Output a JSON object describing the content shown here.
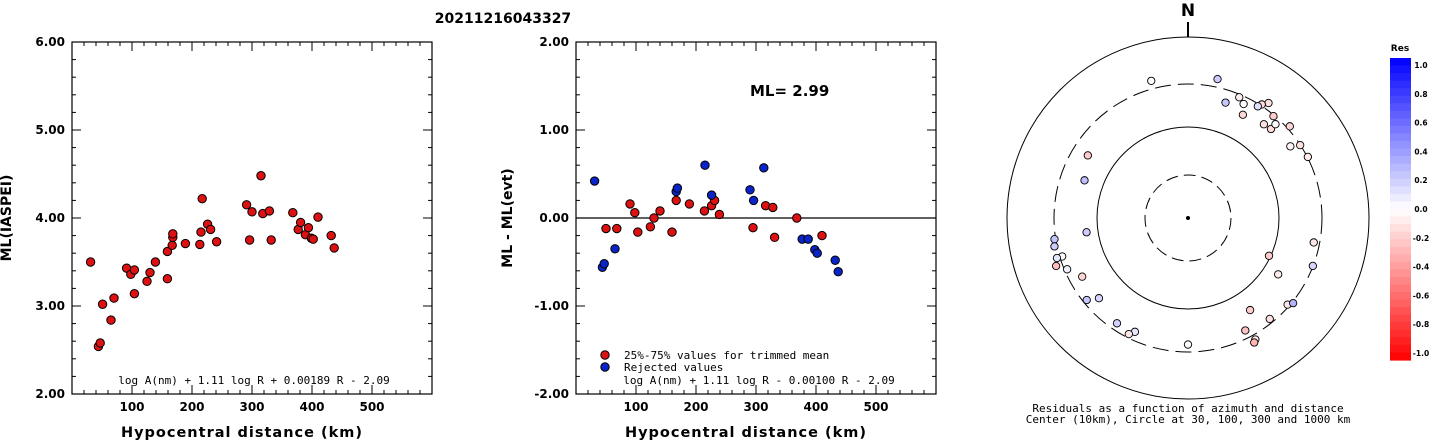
{
  "page_title": "20211216043327",
  "chart_data": [
    {
      "type": "scatter",
      "ylabel": "ML(IASPEI)",
      "xlabel": "Hypocentral distance (km)",
      "xlim": [
        0,
        600
      ],
      "ylim": [
        2.0,
        6.0
      ],
      "x_ticks": [
        "100",
        "200",
        "300",
        "400",
        "500"
      ],
      "y_ticks": [
        "2.00",
        "3.00",
        "4.00",
        "5.00",
        "6.00"
      ],
      "formula": "log A(nm) + 1.11 log R + 0.00189 R - 2.09",
      "point_color": "#dd1111",
      "points": [
        [
          31,
          3.5
        ],
        [
          44,
          2.54
        ],
        [
          47,
          2.58
        ],
        [
          51,
          3.02
        ],
        [
          65,
          2.84
        ],
        [
          70,
          3.09
        ],
        [
          91,
          3.43
        ],
        [
          98,
          3.36
        ],
        [
          104,
          3.14
        ],
        [
          104,
          3.41
        ],
        [
          125,
          3.28
        ],
        [
          130,
          3.38
        ],
        [
          139,
          3.5
        ],
        [
          159,
          3.31
        ],
        [
          159,
          3.62
        ],
        [
          167,
          3.69
        ],
        [
          168,
          3.78
        ],
        [
          168,
          3.82
        ],
        [
          189,
          3.71
        ],
        [
          213,
          3.7
        ],
        [
          215,
          3.84
        ],
        [
          217,
          4.22
        ],
        [
          226,
          3.93
        ],
        [
          231,
          3.87
        ],
        [
          241,
          3.73
        ],
        [
          291,
          4.15
        ],
        [
          296,
          3.75
        ],
        [
          300,
          4.07
        ],
        [
          315,
          4.48
        ],
        [
          318,
          4.05
        ],
        [
          329,
          4.08
        ],
        [
          332,
          3.75
        ],
        [
          368,
          4.06
        ],
        [
          377,
          3.87
        ],
        [
          381,
          3.95
        ],
        [
          389,
          3.81
        ],
        [
          394,
          3.89
        ],
        [
          399,
          3.77
        ],
        [
          402,
          3.76
        ],
        [
          410,
          4.01
        ],
        [
          432,
          3.8
        ],
        [
          437,
          3.66
        ]
      ]
    },
    {
      "type": "scatter",
      "ylabel": "ML - ML(evt)",
      "xlabel": "Hypocentral distance (km)",
      "xlim": [
        0,
        600
      ],
      "ylim": [
        -2.0,
        2.0
      ],
      "x_ticks": [
        "100",
        "200",
        "300",
        "400",
        "500"
      ],
      "y_ticks": [
        "-2.00",
        "-1.00",
        "0.00",
        "1.00",
        "2.00"
      ],
      "ml_text": "ML= 2.99",
      "formula": "log A(nm) + 1.11 log R - 0.00100 R - 2.09",
      "legend": [
        {
          "label": "25%-75% values for trimmed mean",
          "color": "#dd1111"
        },
        {
          "label": "Rejected values",
          "color": "#0a24c8"
        }
      ],
      "series": [
        {
          "name": "25%-75% values for trimmed mean",
          "color": "#dd1111",
          "points": [
            [
              50,
              -0.12
            ],
            [
              68,
              -0.12
            ],
            [
              90,
              0.16
            ],
            [
              98,
              0.06
            ],
            [
              103,
              -0.16
            ],
            [
              124,
              -0.1
            ],
            [
              130,
              0.0
            ],
            [
              140,
              0.08
            ],
            [
              160,
              -0.16
            ],
            [
              167,
              0.2
            ],
            [
              189,
              0.16
            ],
            [
              214,
              0.08
            ],
            [
              226,
              0.14
            ],
            [
              231,
              0.2
            ],
            [
              239,
              0.04
            ],
            [
              295,
              -0.11
            ],
            [
              316,
              0.14
            ],
            [
              328,
              0.12
            ],
            [
              331,
              -0.22
            ],
            [
              368,
              0.0
            ],
            [
              410,
              -0.2
            ]
          ]
        },
        {
          "name": "Rejected values",
          "color": "#0a24c8",
          "points": [
            [
              31,
              0.42
            ],
            [
              44,
              -0.56
            ],
            [
              47,
              -0.52
            ],
            [
              65,
              -0.35
            ],
            [
              167,
              0.3
            ],
            [
              169,
              0.34
            ],
            [
              215,
              0.6
            ],
            [
              226,
              0.26
            ],
            [
              290,
              0.32
            ],
            [
              296,
              0.2
            ],
            [
              313,
              0.57
            ],
            [
              377,
              -0.24
            ],
            [
              387,
              -0.24
            ],
            [
              398,
              -0.36
            ],
            [
              402,
              -0.4
            ],
            [
              432,
              -0.48
            ],
            [
              437,
              -0.61
            ]
          ]
        }
      ]
    },
    {
      "type": "polar-scatter",
      "north_label": "N",
      "caption_line1": "Residuals as a function of azimuth and distance",
      "caption_line2": "Center (10km), Circle at 30, 100, 300 and 1000 km",
      "colorbar_title": "Res",
      "colorbar_ticks": [
        "1.0",
        "0.8",
        "0.6",
        "0.4",
        "0.2",
        "0.0",
        "-0.2",
        "-0.4",
        "-0.6",
        "-0.8",
        "-1.0"
      ],
      "points": [
        [
          345,
          368,
          0.0
        ],
        [
          12,
          368,
          0.2
        ],
        [
          35,
          353,
          -0.12
        ],
        [
          33,
          311,
          -0.14
        ],
        [
          48,
          324,
          -0.16
        ],
        [
          40,
          292,
          -0.2
        ],
        [
          32,
          283,
          0.12
        ],
        [
          23,
          279,
          -0.06
        ],
        [
          57,
          298,
          -0.12
        ],
        [
          63,
          304,
          -0.08
        ],
        [
          43,
          219,
          -0.14
        ],
        [
          43,
          259,
          -0.02
        ],
        [
          18,
          217,
          0.22
        ],
        [
          26,
          250,
          0.02
        ],
        [
          55,
          238,
          -0.04
        ],
        [
          39,
          213,
          -0.12
        ],
        [
          28,
          194,
          -0.16
        ],
        [
          290,
          163,
          0.26
        ],
        [
          262,
          134,
          0.2
        ],
        [
          302,
          200,
          -0.2
        ],
        [
          146,
          167,
          -0.2
        ],
        [
          122,
          148,
          -0.08
        ],
        [
          115,
          96,
          -0.2
        ],
        [
          101,
          258,
          -0.1
        ],
        [
          111,
          298,
          0.16
        ],
        [
          131,
          285,
          -0.1
        ],
        [
          129,
          310,
          0.3
        ],
        [
          141,
          270,
          -0.12
        ],
        [
          153,
          246,
          -0.24
        ],
        [
          151,
          340,
          -0.08
        ],
        [
          152,
          359,
          -0.3
        ],
        [
          180,
          248,
          0.02
        ],
        [
          205,
          242,
          0.1
        ],
        [
          207,
          273,
          -0.1
        ],
        [
          214,
          251,
          0.18
        ],
        [
          228,
          209,
          0.16
        ],
        [
          231,
          273,
          0.22
        ],
        [
          241,
          215,
          -0.16
        ],
        [
          250,
          353,
          -0.26
        ],
        [
          253,
          282,
          0.0
        ],
        [
          258,
          320,
          0.2
        ],
        [
          253,
          324,
          0.1
        ],
        [
          261,
          309,
          0.24
        ],
        [
          247,
          280,
          0.06
        ]
      ]
    }
  ]
}
